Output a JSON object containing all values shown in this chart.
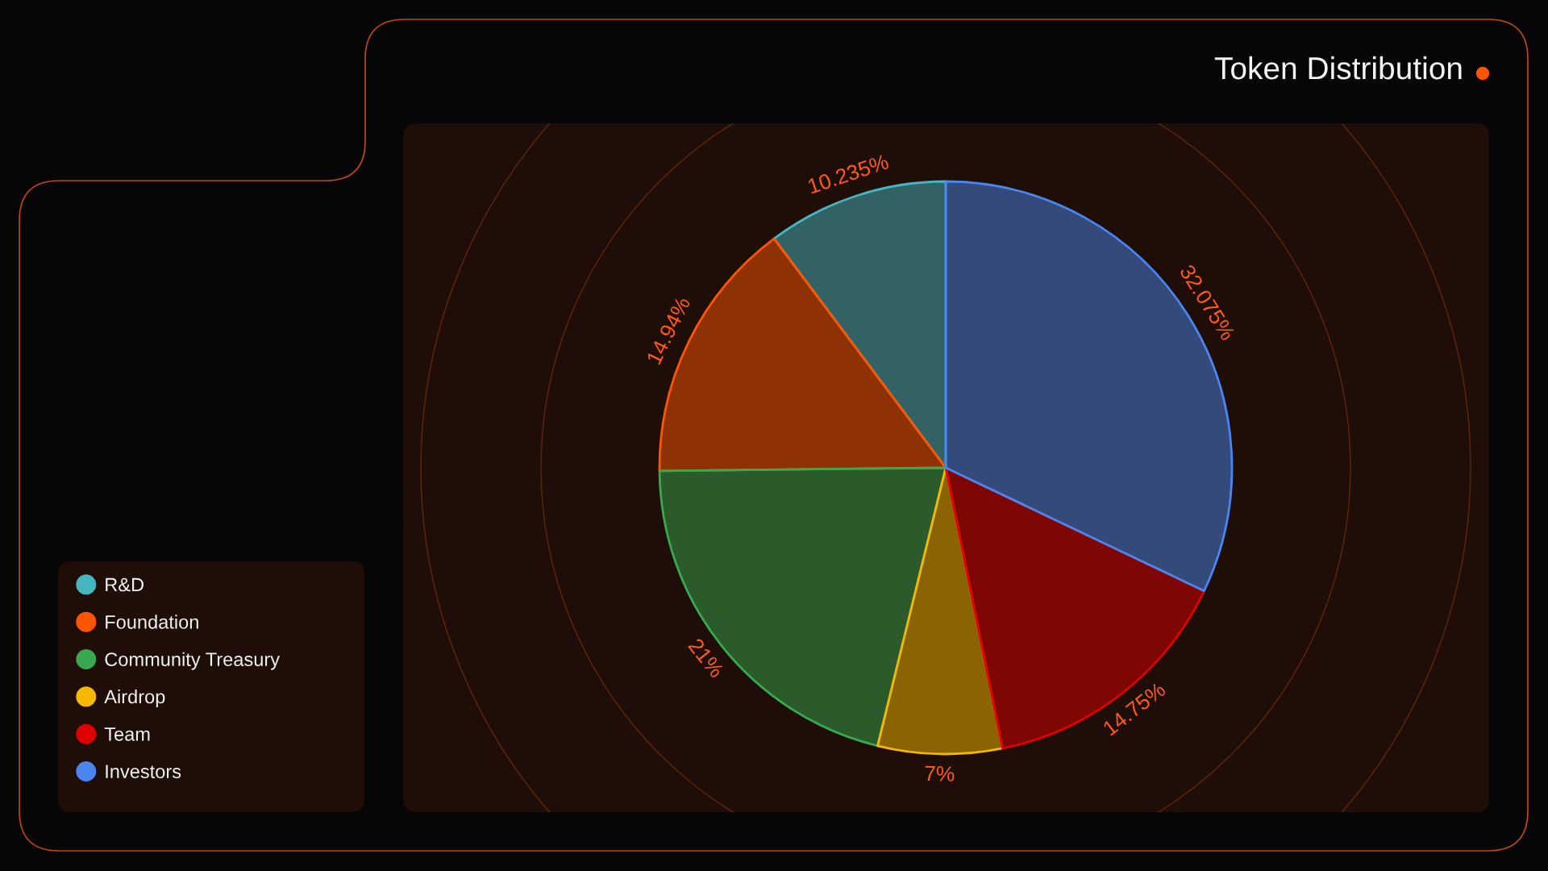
{
  "chart_data": {
    "type": "pie",
    "title": "Token Distribution",
    "categories": [
      "R&D",
      "Foundation",
      "Community Treasury",
      "Airdrop",
      "Team",
      "Investors"
    ],
    "values": [
      10.235,
      14.94,
      21,
      7,
      14.75,
      32.075
    ],
    "value_labels": [
      "10.235%",
      "14.94%",
      "21%",
      "7%",
      "14.75%",
      "32.075%"
    ],
    "colors": [
      "#45b5c0",
      "#ff5500",
      "#3aa84f",
      "#f5b800",
      "#e00000",
      "#4a86f0"
    ],
    "legend": "bottom left"
  }
}
